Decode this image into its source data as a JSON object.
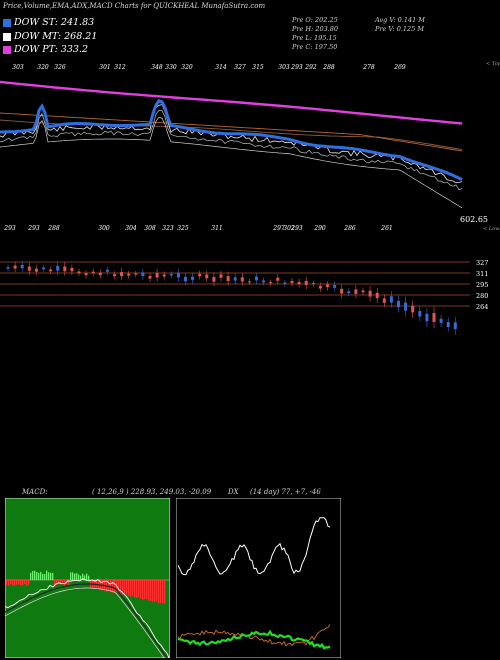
{
  "header": {
    "title": "Price,Volume,EMA,ADX,MACD Charts for QUICKHEAL MunafaSutra.com"
  },
  "legend": [
    {
      "label": "DOW ST: 241.83",
      "color": "#2f6fe0"
    },
    {
      "label": "DOW MT: 268.21",
      "color": "#ffffff"
    },
    {
      "label": "DOW PT: 333.2",
      "color": "#e23ee0"
    }
  ],
  "ohlc": {
    "open": "Pre O: 202.25",
    "high": "Pre H: 203.80",
    "low": "Pre L: 195.15",
    "close": "Pre C: 197.50",
    "avg_volume": "Avg V: 0.141 M",
    "prev_volume": "Pre V: 0.125 M"
  },
  "ema_panel": {
    "top_label": "< Tops",
    "low_label": "< Lows",
    "last_value": "602.65",
    "top_values": [
      "303",
      "320",
      "326",
      "301",
      "312",
      "348",
      "330",
      "320",
      "314",
      "327",
      "315",
      "303",
      "293",
      "292",
      "288",
      "278",
      "269"
    ],
    "low_values": [
      "293",
      "293",
      "288",
      "300",
      "304",
      "308",
      "323",
      "325",
      "311",
      "297",
      "302",
      "293",
      "290",
      "286",
      "261"
    ]
  },
  "price_panel": {
    "levels": [
      "327",
      "311",
      "295",
      "280",
      "264"
    ]
  },
  "macd": {
    "label": "MACD:",
    "params": "( 12,26,9 ) 228.93, 249.03, -20.09",
    "adx_label": "DX",
    "adx_params": "(14 day) 77, +7, -46"
  },
  "colors": {
    "ema_short": "#2f6fe0",
    "ema_long": "#e23ee0",
    "macd_bg": "#0f7a0f",
    "bull": "#3a6ad6",
    "bear": "#e25656",
    "level_line": "#a84a2a"
  }
}
